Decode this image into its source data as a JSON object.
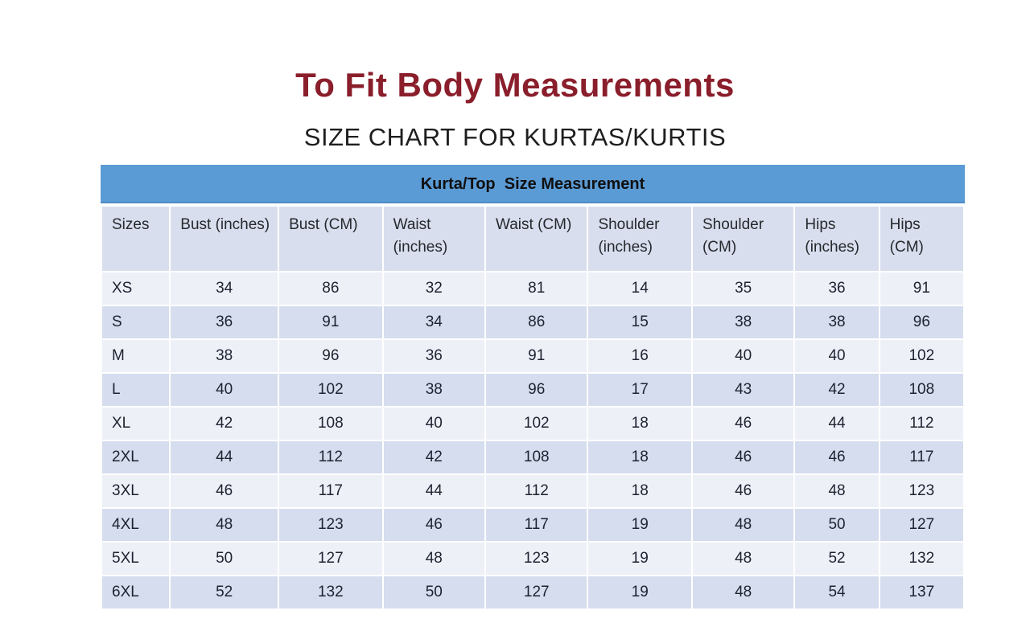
{
  "page": {
    "title": "To Fit Body Measurements",
    "subtitle": "SIZE CHART FOR KURTAS/KURTIS"
  },
  "colors": {
    "title_maroon": "#8a1e2b",
    "caption_band_blue": "#5b9bd5",
    "header_row_bg": "#d8deee",
    "row_light_bg": "#eef0f8",
    "row_dark_bg": "#d5ddee"
  },
  "chart_data": {
    "type": "table",
    "title": "Kurta/Top  Size Measurement",
    "columns": [
      "Sizes",
      "Bust (inches)",
      "Bust (CM)",
      "Waist (inches)",
      "Waist (CM)",
      "Shoulder (inches)",
      "Shoulder (CM)",
      "Hips (inches)",
      "Hips (CM)"
    ],
    "rows": [
      [
        "XS",
        34,
        86,
        32,
        81,
        14,
        35,
        36,
        91
      ],
      [
        "S",
        36,
        91,
        34,
        86,
        15,
        38,
        38,
        96
      ],
      [
        "M",
        38,
        96,
        36,
        91,
        16,
        40,
        40,
        102
      ],
      [
        "L",
        40,
        102,
        38,
        96,
        17,
        43,
        42,
        108
      ],
      [
        "XL",
        42,
        108,
        40,
        102,
        18,
        46,
        44,
        112
      ],
      [
        "2XL",
        44,
        112,
        42,
        108,
        18,
        46,
        46,
        117
      ],
      [
        "3XL",
        46,
        117,
        44,
        112,
        18,
        46,
        48,
        123
      ],
      [
        "4XL",
        48,
        123,
        46,
        117,
        19,
        48,
        50,
        127
      ],
      [
        "5XL",
        50,
        127,
        48,
        123,
        19,
        48,
        52,
        132
      ],
      [
        "6XL",
        52,
        132,
        50,
        127,
        19,
        48,
        54,
        137
      ]
    ]
  }
}
